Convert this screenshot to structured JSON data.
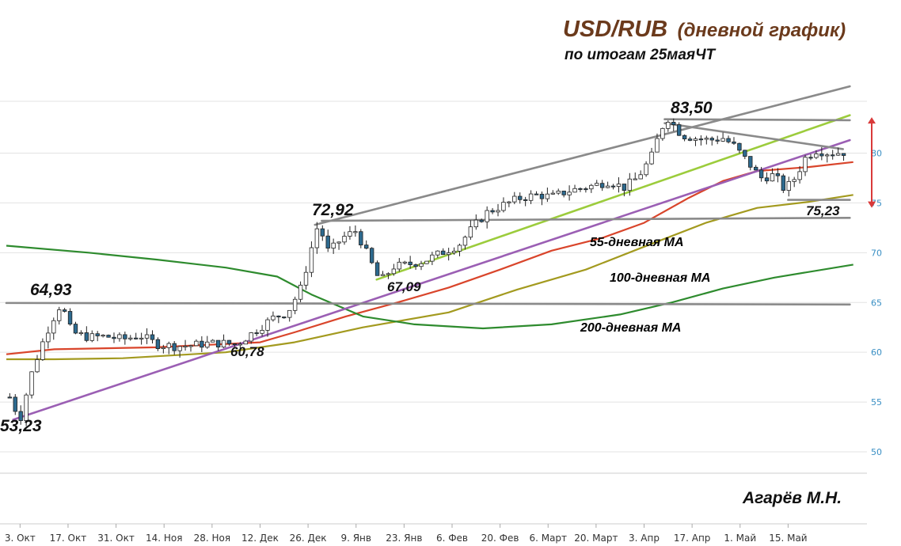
{
  "header": {
    "title_main": "USD/RUB",
    "title_suffix": "(дневной график)",
    "subtitle": "по итогам 25маяЧТ"
  },
  "author": "Агарёв М.Н.",
  "colors": {
    "ma55": "#d9452b",
    "ma100": "#a39a1f",
    "ma200": "#2e8b2e",
    "trend_purple": "#9b5fb4",
    "trend_lightgreen": "#9ccc3c",
    "levels_gray": "#8a8a8a",
    "candle_up": "#ffffff",
    "candle_down": "#2d6a8f",
    "arrow_red": "#d93a3a",
    "title_brown": "#6b3a1c",
    "axis_blue": "#3a8fc4"
  },
  "chart_data": {
    "type": "line",
    "title": "USD/RUB (дневной график)",
    "subtitle": "по итогам 25маяЧТ",
    "y_axis": {
      "ticks": [
        "50",
        "55",
        "60",
        "65",
        "70",
        "75",
        "80"
      ],
      "tick_values": [
        50,
        55,
        60,
        65,
        70,
        75,
        80
      ],
      "ylim": [
        47.7,
        85.2
      ],
      "position": "right"
    },
    "x_axis": {
      "ticks": [
        "3. Окт",
        "17. Окт",
        "31. Окт",
        "14. Ноя",
        "28. Ноя",
        "12. Дек",
        "26. Дек",
        "9. Янв",
        "23. Янв",
        "6. Фев",
        "20. Фев",
        "6. Март",
        "20. Март",
        "3. Апр",
        "17. Апр",
        "1. Май",
        "15. Май"
      ],
      "tick_days": [
        0,
        14,
        28,
        42,
        56,
        70,
        84,
        98,
        112,
        126,
        140,
        154,
        168,
        182,
        196,
        210,
        224
      ],
      "xlim": [
        -4,
        247
      ]
    },
    "annotations": [
      {
        "text": "53,23",
        "day": 0,
        "value": 53.23
      },
      {
        "text": "64,93",
        "day": 12,
        "value": 64.93
      },
      {
        "text": "60,78",
        "day": 63,
        "value": 60.78
      },
      {
        "text": "72,92",
        "day": 87,
        "value": 72.92
      },
      {
        "text": "67,09",
        "day": 105,
        "value": 67.09
      },
      {
        "text": "83,50",
        "day": 189,
        "value": 83.5
      },
      {
        "text": "75,23",
        "day": 224,
        "value": 75.23
      }
    ],
    "series": [
      {
        "name": "55-дневная MA",
        "color": "#d9452b",
        "points": [
          [
            -4,
            59.8
          ],
          [
            10,
            60.3
          ],
          [
            40,
            60.5
          ],
          [
            70,
            61.0
          ],
          [
            80,
            62.0
          ],
          [
            95,
            63.6
          ],
          [
            110,
            65.0
          ],
          [
            125,
            66.5
          ],
          [
            140,
            68.3
          ],
          [
            155,
            70.2
          ],
          [
            170,
            71.5
          ],
          [
            182,
            73.0
          ],
          [
            195,
            75.5
          ],
          [
            205,
            77.2
          ],
          [
            215,
            78.2
          ],
          [
            230,
            78.6
          ],
          [
            243,
            79.1
          ]
        ]
      },
      {
        "name": "100-дневная MA",
        "color": "#a39a1f",
        "points": [
          [
            -4,
            59.3
          ],
          [
            10,
            59.3
          ],
          [
            30,
            59.4
          ],
          [
            60,
            60.0
          ],
          [
            80,
            61.0
          ],
          [
            100,
            62.5
          ],
          [
            125,
            64.0
          ],
          [
            145,
            66.3
          ],
          [
            165,
            68.3
          ],
          [
            182,
            70.6
          ],
          [
            200,
            73.0
          ],
          [
            215,
            74.5
          ],
          [
            230,
            75.1
          ],
          [
            243,
            75.8
          ]
        ]
      },
      {
        "name": "200-дневная MA",
        "color": "#2e8b2e",
        "points": [
          [
            -4,
            70.7
          ],
          [
            20,
            70.0
          ],
          [
            40,
            69.3
          ],
          [
            60,
            68.5
          ],
          [
            75,
            67.6
          ],
          [
            85,
            65.8
          ],
          [
            100,
            63.6
          ],
          [
            115,
            62.8
          ],
          [
            135,
            62.4
          ],
          [
            155,
            62.8
          ],
          [
            175,
            63.8
          ],
          [
            190,
            65.0
          ],
          [
            205,
            66.4
          ],
          [
            220,
            67.5
          ],
          [
            243,
            68.8
          ]
        ]
      }
    ],
    "trendlines": [
      {
        "color": "#9b5fb4",
        "from": [
          -2,
          53.23
        ],
        "to": [
          242,
          81.3
        ]
      },
      {
        "color": "#9ccc3c",
        "from": [
          104,
          67.3
        ],
        "to": [
          242,
          83.8
        ]
      },
      {
        "color": "#8a8a8a",
        "from": [
          86,
          72.8
        ],
        "to": [
          242,
          86.7
        ]
      },
      {
        "color": "#8a8a8a",
        "from": [
          188,
          83.4
        ],
        "to": [
          242,
          83.3
        ]
      },
      {
        "color": "#8a8a8a",
        "from": [
          188,
          83.0
        ],
        "to": [
          240,
          80.4
        ]
      },
      {
        "color": "#8a8a8a",
        "from": [
          88,
          73.2
        ],
        "to": [
          242,
          73.5
        ]
      },
      {
        "color": "#8a8a8a",
        "from": [
          -4,
          64.95
        ],
        "to": [
          242,
          64.8
        ]
      },
      {
        "color": "#8a8a8a",
        "from": [
          224,
          75.3
        ],
        "to": [
          242,
          75.3
        ]
      }
    ],
    "ma_labels": [
      {
        "text": "55-дневная MA",
        "color": "#c63a22"
      },
      {
        "text": "100-дневная MA",
        "color": "#a39a1f"
      },
      {
        "text": "200-дневная MA",
        "color": "#2e8b2e"
      }
    ],
    "candles_path": [
      [
        -3,
        55.5
      ],
      [
        0,
        53.23
      ],
      [
        3,
        57.5
      ],
      [
        6,
        60.5
      ],
      [
        9,
        63.0
      ],
      [
        12,
        64.93
      ],
      [
        15,
        62.0
      ],
      [
        20,
        61.5
      ],
      [
        25,
        61.6
      ],
      [
        30,
        61.3
      ],
      [
        35,
        61.7
      ],
      [
        40,
        60.8
      ],
      [
        45,
        60.6
      ],
      [
        50,
        60.7
      ],
      [
        55,
        60.9
      ],
      [
        60,
        60.9
      ],
      [
        63,
        60.78
      ],
      [
        66,
        61.5
      ],
      [
        70,
        62.5
      ],
      [
        74,
        63.5
      ],
      [
        78,
        64.0
      ],
      [
        82,
        66.5
      ],
      [
        85,
        70.5
      ],
      [
        87,
        72.92
      ],
      [
        90,
        70.0
      ],
      [
        94,
        71.5
      ],
      [
        98,
        72.2
      ],
      [
        101,
        70.0
      ],
      [
        105,
        67.09
      ],
      [
        109,
        68.6
      ],
      [
        113,
        68.8
      ],
      [
        118,
        69.2
      ],
      [
        123,
        70.0
      ],
      [
        128,
        70.8
      ],
      [
        132,
        72.5
      ],
      [
        136,
        74.0
      ],
      [
        141,
        74.8
      ],
      [
        146,
        75.5
      ],
      [
        151,
        75.8
      ],
      [
        155,
        75.6
      ],
      [
        160,
        76.2
      ],
      [
        164,
        76.5
      ],
      [
        168,
        76.8
      ],
      [
        172,
        77.2
      ],
      [
        176,
        76.5
      ],
      [
        180,
        77.5
      ],
      [
        184,
        79.5
      ],
      [
        187,
        82.5
      ],
      [
        189,
        83.5
      ],
      [
        193,
        81.8
      ],
      [
        197,
        81.5
      ],
      [
        201,
        81.3
      ],
      [
        205,
        81.5
      ],
      [
        208,
        80.8
      ],
      [
        212,
        79.2
      ],
      [
        216,
        77.5
      ],
      [
        220,
        77.8
      ],
      [
        223,
        76.3
      ],
      [
        226,
        77.5
      ],
      [
        229,
        79.5
      ],
      [
        232,
        80.3
      ],
      [
        236,
        80.0
      ],
      [
        241,
        80.1
      ]
    ]
  }
}
